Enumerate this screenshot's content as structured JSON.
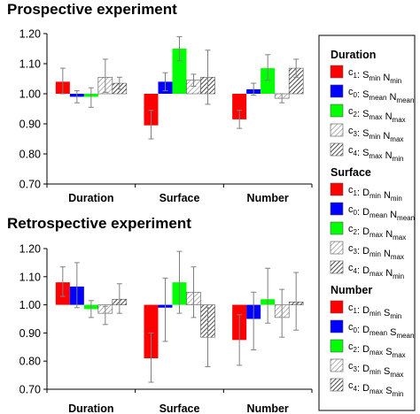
{
  "chart_data": [
    {
      "type": "bar",
      "title": "Prospective experiment",
      "categories": [
        "Duration",
        "Surface",
        "Number"
      ],
      "ylim": [
        0.7,
        1.2
      ],
      "yticks": [
        "0.70",
        "0.80",
        "0.90",
        "1.00",
        "1.10",
        "1.20"
      ],
      "baseline": 1.0,
      "grid": false,
      "series": [
        {
          "values": [
            1.04,
            0.895,
            0.915
          ],
          "err_low": [
            0.04,
            0.045,
            0.03
          ],
          "err_high": [
            0.045,
            0.05,
            0.03
          ]
        },
        {
          "values": [
            0.99,
            1.04,
            1.015
          ],
          "err_low": [
            0.02,
            0.03,
            0.02
          ],
          "err_high": [
            0.02,
            0.03,
            0.02
          ]
        },
        {
          "values": [
            0.99,
            1.15,
            1.085
          ],
          "err_low": [
            0.035,
            0.04,
            0.04
          ],
          "err_high": [
            0.03,
            0.04,
            0.045
          ]
        },
        {
          "values": [
            1.055,
            1.045,
            0.985
          ],
          "err_low": [
            0.05,
            0.02,
            0.015
          ],
          "err_high": [
            0.06,
            0.02,
            0.015
          ]
        },
        {
          "values": [
            1.035,
            1.055,
            1.085
          ],
          "err_low": [
            0.02,
            0.09,
            0.03
          ],
          "err_high": [
            0.02,
            0.09,
            0.03
          ]
        }
      ]
    },
    {
      "type": "bar",
      "title": "Retrospective experiment",
      "categories": [
        "Duration",
        "Surface",
        "Number"
      ],
      "ylim": [
        0.7,
        1.2
      ],
      "yticks": [
        "0.70",
        "0.80",
        "0.90",
        "1.00",
        "1.10",
        "1.20"
      ],
      "baseline": 1.0,
      "grid": false,
      "series": [
        {
          "values": [
            1.08,
            0.81,
            0.875
          ],
          "err_low": [
            0.05,
            0.085,
            0.09
          ],
          "err_high": [
            0.055,
            0.09,
            0.09
          ]
        },
        {
          "values": [
            1.065,
            0.99,
            0.95
          ],
          "err_low": [
            0.075,
            0.12,
            0.11
          ],
          "err_high": [
            0.085,
            0.105,
            0.095
          ]
        },
        {
          "values": [
            0.985,
            1.08,
            1.02
          ],
          "err_low": [
            0.03,
            0.11,
            0.085
          ],
          "err_high": [
            0.03,
            0.11,
            0.11
          ]
        },
        {
          "values": [
            0.97,
            1.045,
            0.955
          ],
          "err_low": [
            0.04,
            0.09,
            0.07
          ],
          "err_high": [
            0.025,
            0.09,
            0.1
          ]
        },
        {
          "values": [
            1.02,
            0.885,
            1.01
          ],
          "err_low": [
            0.05,
            0.105,
            0.1
          ],
          "err_high": [
            0.055,
            0.105,
            0.105
          ]
        }
      ]
    }
  ],
  "series_styles": [
    {
      "fill": "#ff0000",
      "pattern": "solid"
    },
    {
      "fill": "#0000ff",
      "pattern": "solid"
    },
    {
      "fill": "#00ff00",
      "pattern": "solid"
    },
    {
      "fill": "#ffffff",
      "pattern": "light-hatch"
    },
    {
      "fill": "#ffffff",
      "pattern": "dark-hatch"
    }
  ],
  "legend": [
    {
      "title": "Duration",
      "entries": [
        [
          [
            "c",
            "1"
          ],
          [
            ": S",
            ""
          ],
          [
            "min",
            "sub"
          ],
          [
            " N",
            ""
          ],
          [
            "min",
            "sub"
          ]
        ],
        [
          [
            "c",
            "0"
          ],
          [
            ": S",
            ""
          ],
          [
            "mean",
            "sub"
          ],
          [
            " N",
            ""
          ],
          [
            "mean",
            "sub"
          ]
        ],
        [
          [
            "c",
            "2"
          ],
          [
            ": S",
            ""
          ],
          [
            "max",
            "sub"
          ],
          [
            " N",
            ""
          ],
          [
            "max",
            "sub"
          ]
        ],
        [
          [
            "c",
            "3"
          ],
          [
            ": S",
            ""
          ],
          [
            "min",
            "sub"
          ],
          [
            " N",
            ""
          ],
          [
            "max",
            "sub"
          ]
        ],
        [
          [
            "c",
            "4"
          ],
          [
            ": S",
            ""
          ],
          [
            "max",
            "sub"
          ],
          [
            " N",
            ""
          ],
          [
            "min",
            "sub"
          ]
        ]
      ]
    },
    {
      "title": "Surface",
      "entries": [
        [
          [
            "c",
            "1"
          ],
          [
            ": D",
            ""
          ],
          [
            "min",
            "sub"
          ],
          [
            " N",
            ""
          ],
          [
            "min",
            "sub"
          ]
        ],
        [
          [
            "c",
            "0"
          ],
          [
            ": D",
            ""
          ],
          [
            "mean",
            "sub"
          ],
          [
            " N",
            ""
          ],
          [
            "mean",
            "sub"
          ]
        ],
        [
          [
            "c",
            "2"
          ],
          [
            ": D",
            ""
          ],
          [
            "max",
            "sub"
          ],
          [
            " N",
            ""
          ],
          [
            "max",
            "sub"
          ]
        ],
        [
          [
            "c",
            "3"
          ],
          [
            ": D",
            ""
          ],
          [
            "min",
            "sub"
          ],
          [
            " N",
            ""
          ],
          [
            "max",
            "sub"
          ]
        ],
        [
          [
            "c",
            "4"
          ],
          [
            ": D",
            ""
          ],
          [
            "max",
            "sub"
          ],
          [
            " N",
            ""
          ],
          [
            "min",
            "sub"
          ]
        ]
      ]
    },
    {
      "title": "Number",
      "entries": [
        [
          [
            "c",
            "1"
          ],
          [
            ": D",
            ""
          ],
          [
            "min",
            "sub"
          ],
          [
            " S",
            ""
          ],
          [
            "min",
            "sub"
          ]
        ],
        [
          [
            "c",
            "0"
          ],
          [
            ": D",
            ""
          ],
          [
            "mean",
            "sub"
          ],
          [
            " S",
            ""
          ],
          [
            "mean",
            "sub"
          ]
        ],
        [
          [
            "c",
            "2"
          ],
          [
            ": D",
            ""
          ],
          [
            "max",
            "sub"
          ],
          [
            " S",
            ""
          ],
          [
            "max",
            "sub"
          ]
        ],
        [
          [
            "c",
            "3"
          ],
          [
            ": D",
            ""
          ],
          [
            "min",
            "sub"
          ],
          [
            " S",
            ""
          ],
          [
            "max",
            "sub"
          ]
        ],
        [
          [
            "c",
            "4"
          ],
          [
            ": D",
            ""
          ],
          [
            "max",
            "sub"
          ],
          [
            " S",
            ""
          ],
          [
            "min",
            "sub"
          ]
        ]
      ]
    }
  ]
}
